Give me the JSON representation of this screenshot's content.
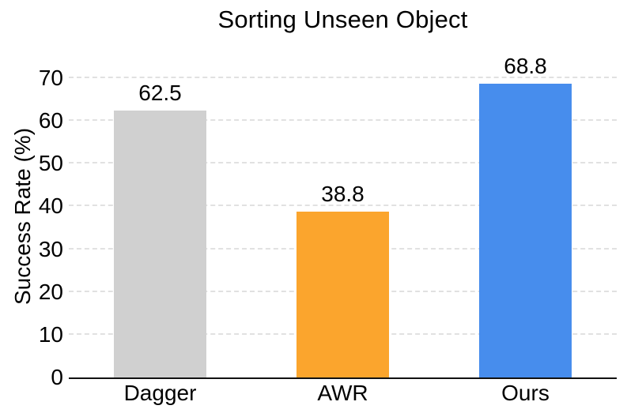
{
  "chart_data": {
    "type": "bar",
    "title": "Sorting Unseen Object",
    "xlabel": "",
    "ylabel": "Success Rate (%)",
    "categories": [
      "Dagger",
      "AWR",
      "Ours"
    ],
    "values": [
      62.5,
      38.8,
      68.8
    ],
    "value_labels": [
      "62.5",
      "38.8",
      "68.8"
    ],
    "bar_colors": [
      "#D0D0D0",
      "#FBA52D",
      "#478DED"
    ],
    "yticks": [
      0,
      10,
      20,
      30,
      40,
      50,
      60,
      70
    ],
    "ylim": [
      0,
      75
    ],
    "grid": "horizontal-dashed",
    "legend_position": "none"
  },
  "styles": {
    "background": "#ffffff",
    "axis_color": "#111111",
    "grid_color": "#E1E1E1",
    "text_color": "#000000"
  }
}
